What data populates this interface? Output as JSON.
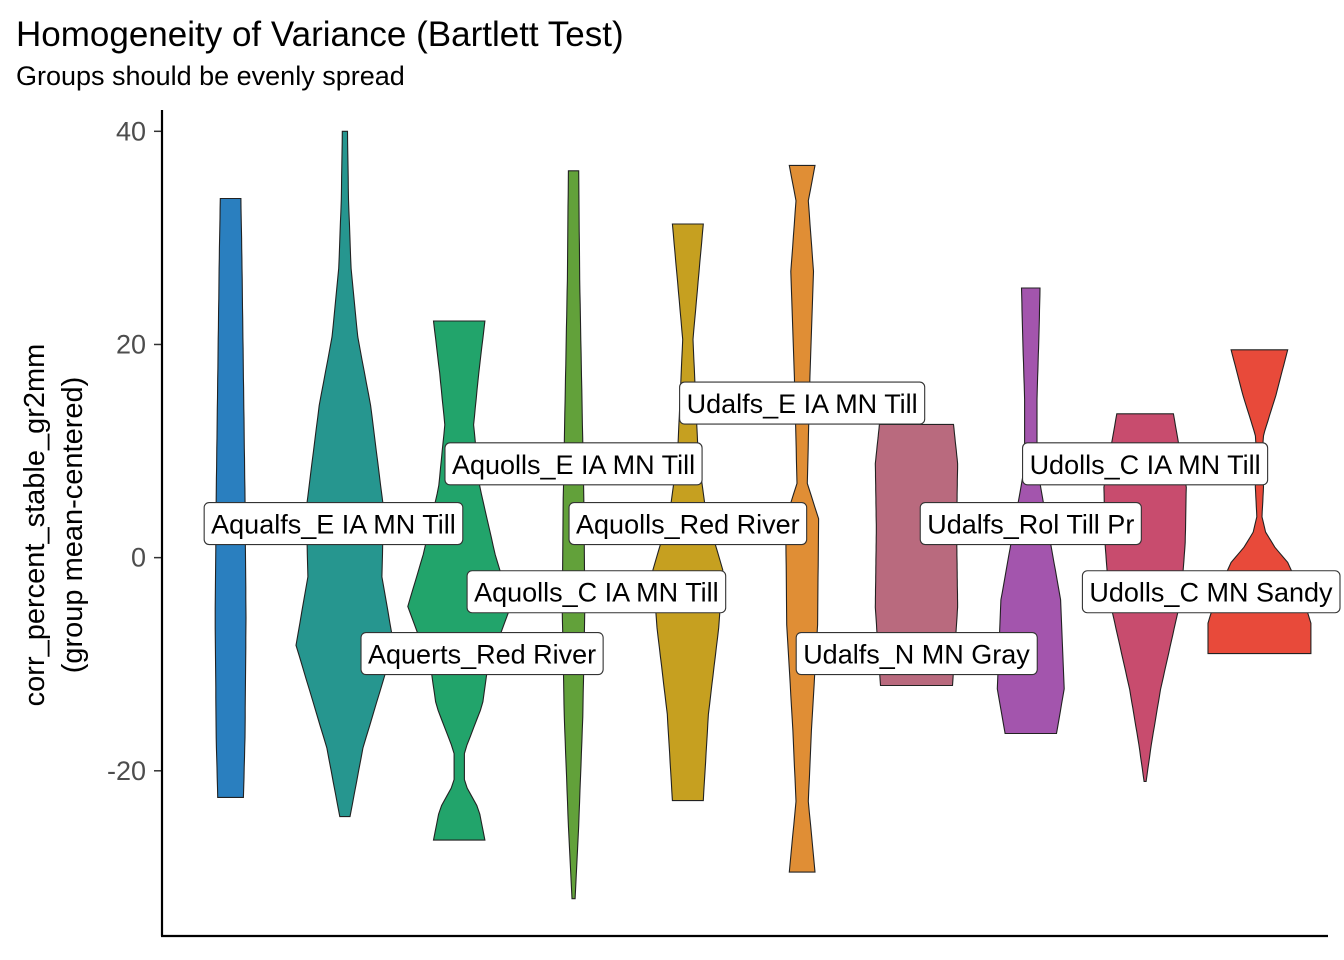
{
  "chart_data": {
    "type": "violin",
    "title": "Homogeneity of Variance (Bartlett Test)",
    "subtitle": "Groups should be evenly spread",
    "ylabel_lines": [
      "corr_percent_stable_gr2mm",
      "(group mean-centered)"
    ],
    "xlabel": "",
    "ylim": [
      -35.5,
      42
    ],
    "y_ticks": [
      -20,
      0,
      20,
      40
    ],
    "grid": false,
    "legend": "none",
    "groups": [
      {
        "name": "Aqualfs_E IA MN Till",
        "color": "#2A7FBF",
        "ymin": -22.5,
        "ymax": 33.7,
        "label_y": 3.2,
        "label_x_offset": 0.9,
        "profile": [
          [
            0,
            0.25
          ],
          [
            0.1,
            0.28
          ],
          [
            0.3,
            0.3
          ],
          [
            0.5,
            0.28
          ],
          [
            0.7,
            0.25
          ],
          [
            0.9,
            0.22
          ],
          [
            1,
            0.2
          ]
        ]
      },
      {
        "name": "Aquerts_Red River",
        "color": "#26968F",
        "ymin": -24.3,
        "ymax": 40,
        "label_y": -9,
        "label_x_offset": 1.2,
        "profile": [
          [
            0,
            0.1
          ],
          [
            0.1,
            0.35
          ],
          [
            0.25,
            0.95
          ],
          [
            0.35,
            0.72
          ],
          [
            0.45,
            0.75
          ],
          [
            0.6,
            0.5
          ],
          [
            0.7,
            0.25
          ],
          [
            0.8,
            0.12
          ],
          [
            0.9,
            0.07
          ],
          [
            1,
            0.05
          ]
        ]
      },
      {
        "name": "Aquolls_C IA MN Till",
        "color": "#22A46B",
        "ymin": -26.5,
        "ymax": 22.2,
        "label_y": -3.2,
        "label_x_offset": 1.2,
        "profile": [
          [
            0,
            0.5
          ],
          [
            0.06,
            0.38
          ],
          [
            0.11,
            0.1
          ],
          [
            0.17,
            0.1
          ],
          [
            0.26,
            0.45
          ],
          [
            0.33,
            0.55
          ],
          [
            0.45,
            1
          ],
          [
            0.55,
            0.7
          ],
          [
            0.68,
            0.4
          ],
          [
            0.8,
            0.28
          ],
          [
            0.9,
            0.38
          ],
          [
            1,
            0.5
          ]
        ]
      },
      {
        "name": "Aquolls_E IA MN Till",
        "color": "#62A13A",
        "ymin": -32,
        "ymax": 36.3,
        "label_y": 8.8,
        "label_x_offset": 0,
        "profile": [
          [
            0,
            0.03
          ],
          [
            0.1,
            0.1
          ],
          [
            0.25,
            0.18
          ],
          [
            0.4,
            0.22
          ],
          [
            0.55,
            0.2
          ],
          [
            0.7,
            0.16
          ],
          [
            0.85,
            0.12
          ],
          [
            1,
            0.1
          ]
        ]
      },
      {
        "name": "Aquolls_Red River",
        "color": "#C6A020",
        "ymin": -22.8,
        "ymax": 31.3,
        "label_y": 3.2,
        "label_x_offset": 0,
        "profile": [
          [
            0,
            0.3
          ],
          [
            0.15,
            0.4
          ],
          [
            0.3,
            0.6
          ],
          [
            0.4,
            0.68
          ],
          [
            0.5,
            0.35
          ],
          [
            0.6,
            0.2
          ],
          [
            0.7,
            0.15
          ],
          [
            0.8,
            0.1
          ],
          [
            0.9,
            0.2
          ],
          [
            1,
            0.3
          ]
        ]
      },
      {
        "name": "Udalfs_E IA MN Till",
        "color": "#E08E35",
        "ymin": -29.5,
        "ymax": 36.8,
        "label_y": 14.5,
        "label_x_offset": 0,
        "profile": [
          [
            0,
            0.25
          ],
          [
            0.1,
            0.12
          ],
          [
            0.2,
            0.18
          ],
          [
            0.35,
            0.3
          ],
          [
            0.5,
            0.32
          ],
          [
            0.55,
            0.1
          ],
          [
            0.7,
            0.15
          ],
          [
            0.85,
            0.22
          ],
          [
            0.95,
            0.12
          ],
          [
            1,
            0.25
          ]
        ]
      },
      {
        "name": "Udalfs_N MN Gray",
        "color": "#B96A7E",
        "ymin": -12,
        "ymax": 12.5,
        "label_y": -9,
        "label_x_offset": 0,
        "profile": [
          [
            0,
            0.7
          ],
          [
            0.3,
            0.8
          ],
          [
            0.6,
            0.78
          ],
          [
            0.85,
            0.8
          ],
          [
            1,
            0.72
          ]
        ]
      },
      {
        "name": "Udalfs_Rol Till Pr",
        "color": "#A355AD",
        "ymin": -16.5,
        "ymax": 25.3,
        "label_y": 3.2,
        "label_x_offset": 0,
        "profile": [
          [
            0,
            0.5
          ],
          [
            0.1,
            0.65
          ],
          [
            0.3,
            0.58
          ],
          [
            0.45,
            0.35
          ],
          [
            0.6,
            0.12
          ],
          [
            0.75,
            0.12
          ],
          [
            0.9,
            0.16
          ],
          [
            1,
            0.18
          ]
        ]
      },
      {
        "name": "Udolls_C IA MN Till",
        "color": "#C84C6E",
        "ymin": -21,
        "ymax": 13.5,
        "label_y": 8.8,
        "label_x_offset": 0,
        "profile": [
          [
            0,
            0.02
          ],
          [
            0.1,
            0.12
          ],
          [
            0.25,
            0.3
          ],
          [
            0.5,
            0.7
          ],
          [
            0.65,
            0.78
          ],
          [
            0.8,
            0.8
          ],
          [
            1,
            0.55
          ]
        ]
      },
      {
        "name": "Udolls_C MN Sandy",
        "color": "#E84A3A",
        "ymin": -9,
        "ymax": 19.5,
        "label_y": -3.2,
        "label_x_offset": -0.25,
        "profile": [
          [
            0,
            1
          ],
          [
            0.1,
            1
          ],
          [
            0.2,
            0.82
          ],
          [
            0.3,
            0.55
          ],
          [
            0.35,
            0.3
          ],
          [
            0.4,
            0.12
          ],
          [
            0.45,
            0.05
          ],
          [
            0.55,
            0.08
          ],
          [
            0.62,
            0.04
          ],
          [
            0.72,
            0.08
          ],
          [
            0.85,
            0.32
          ],
          [
            1,
            0.55
          ]
        ]
      }
    ]
  }
}
